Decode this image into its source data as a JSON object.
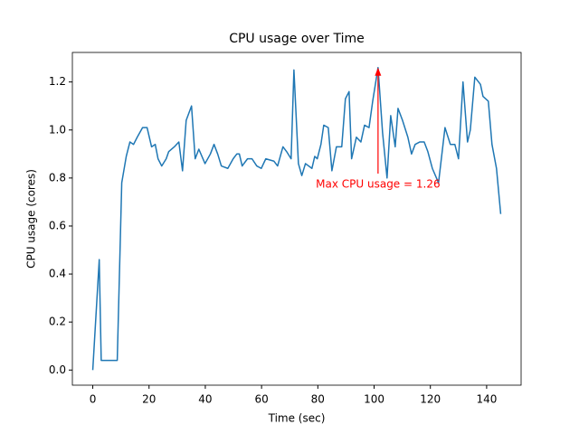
{
  "chart_data": {
    "type": "line",
    "title": "CPU usage over Time",
    "x_label": "Time (sec)",
    "y_label": "CPU usage (cores)",
    "x": [
      0,
      2.3,
      3,
      5.8,
      8.7,
      10.3,
      11.9,
      13.2,
      14.5,
      15.8,
      17.7,
      19.3,
      20.9,
      22.2,
      23.2,
      24.5,
      26.1,
      27,
      29,
      30.6,
      31.9,
      33.2,
      35.1,
      36.4,
      37.7,
      39.9,
      41.8,
      43.1,
      44.4,
      45.7,
      48,
      49.9,
      51.2,
      52.1,
      53.1,
      55,
      56.6,
      58.3,
      59.9,
      61.5,
      64.4,
      65.7,
      67.6,
      68.9,
      70.5,
      71.5,
      73.1,
      74.3,
      75.6,
      77.9,
      78.9,
      79.8,
      81.1,
      82.1,
      83.7,
      85,
      86.6,
      88.5,
      89.8,
      91.1,
      92,
      93.7,
      95.3,
      96.6,
      98.2,
      99.5,
      101.4,
      103,
      104.6,
      105.9,
      107.5,
      108.5,
      110.1,
      112,
      113.3,
      114.6,
      116.2,
      117.8,
      119.1,
      120.7,
      122.9,
      125.2,
      127.1,
      128.7,
      130,
      131.6,
      133.2,
      134.2,
      135.8,
      137.8,
      138.7,
      140.6,
      141.9,
      143.5,
      145
    ],
    "values": [
      0,
      0.46,
      0.04,
      0.04,
      0.04,
      0.78,
      0.89,
      0.95,
      0.94,
      0.97,
      1.01,
      1.01,
      0.93,
      0.94,
      0.88,
      0.85,
      0.88,
      0.91,
      0.93,
      0.95,
      0.83,
      1.04,
      1.1,
      0.88,
      0.92,
      0.86,
      0.9,
      0.94,
      0.9,
      0.85,
      0.84,
      0.88,
      0.9,
      0.9,
      0.85,
      0.88,
      0.88,
      0.85,
      0.84,
      0.88,
      0.87,
      0.85,
      0.93,
      0.91,
      0.88,
      1.25,
      0.86,
      0.81,
      0.86,
      0.84,
      0.89,
      0.88,
      0.94,
      1.02,
      1.01,
      0.83,
      0.93,
      0.93,
      1.13,
      1.16,
      0.88,
      0.97,
      0.95,
      1.02,
      1.01,
      1.12,
      1.26,
      0.99,
      0.8,
      1.06,
      0.93,
      1.09,
      1.04,
      0.97,
      0.9,
      0.94,
      0.95,
      0.95,
      0.91,
      0.84,
      0.78,
      1.01,
      0.94,
      0.94,
      0.88,
      1.2,
      0.95,
      1.0,
      1.22,
      1.19,
      1.14,
      1.12,
      0.94,
      0.84,
      0.65
    ],
    "color": "#1f77b4",
    "xlim": [
      -7.25,
      152.25
    ],
    "xticks": [
      0,
      20,
      40,
      60,
      80,
      100,
      120,
      140
    ],
    "ylim": [
      -0.063,
      1.323
    ],
    "yticks": [
      {
        "value": 0,
        "label": "0.0"
      },
      0.2,
      0.4,
      0.6,
      0.8,
      {
        "value": 1,
        "label": "1.0"
      },
      1.2
    ],
    "annotation": {
      "text": "Max CPU usage = 1.26",
      "x": 101.4,
      "y": 1.26,
      "color": "#ff0000"
    }
  }
}
